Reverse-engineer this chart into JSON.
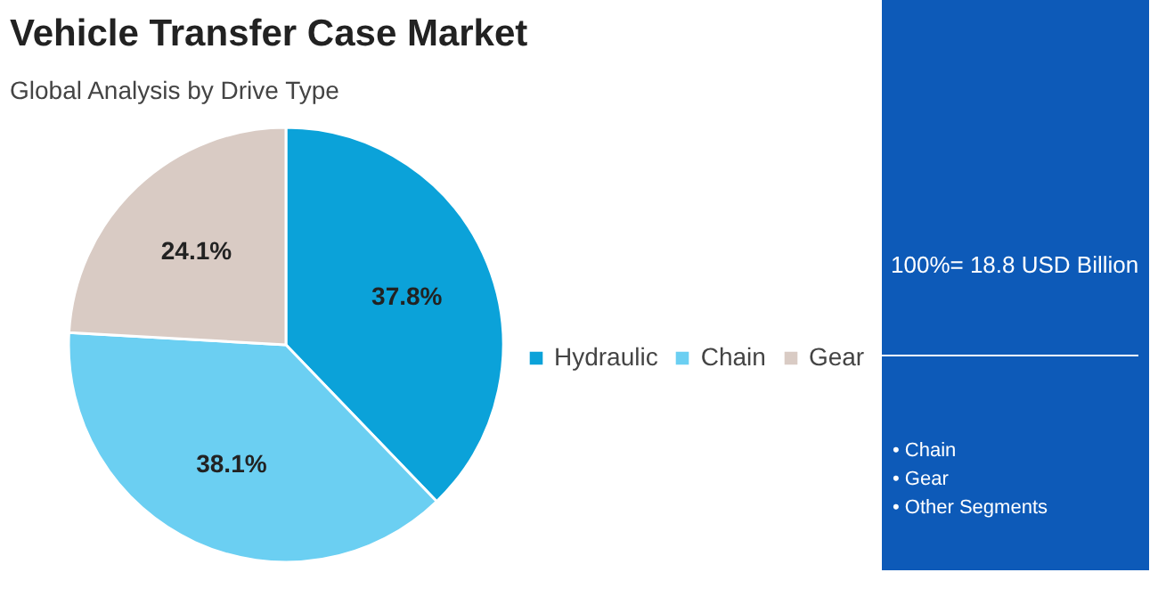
{
  "chart_data": {
    "type": "pie",
    "title": "Vehicle Transfer Case Market",
    "subtitle": "Global Analysis by Drive Type",
    "categories": [
      "Hydraulic",
      "Chain",
      "Gear"
    ],
    "values": [
      37.8,
      38.1,
      24.1
    ],
    "value_labels": [
      "37.8%",
      "38.1%",
      "24.1%"
    ],
    "colors": [
      "#0ba2d9",
      "#6bcff2",
      "#d9cbc4"
    ],
    "legend": "right",
    "annotations": [
      "100%= 18.8 USD Billion",
      "• Chain",
      "• Gear",
      "• Other Segments"
    ]
  }
}
